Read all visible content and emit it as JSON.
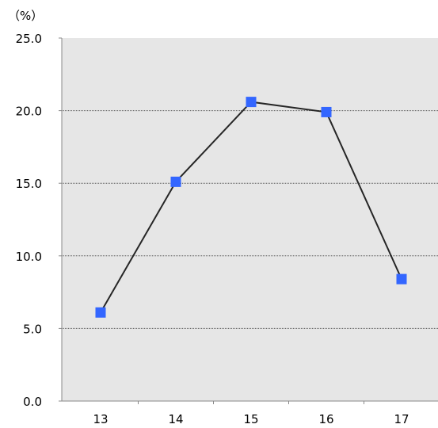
{
  "chart_data": {
    "type": "line",
    "title": "",
    "unit_label": "（%）",
    "xlabel": "",
    "ylabel": "",
    "categories": [
      "13",
      "14",
      "15",
      "16",
      "17"
    ],
    "series": [
      {
        "values": [
          6.1,
          15.1,
          20.6,
          19.9,
          8.4
        ]
      }
    ],
    "ylim": [
      0,
      25
    ],
    "yticks": [
      "0.0",
      "5.0",
      "10.0",
      "15.0",
      "20.0",
      "25.0"
    ],
    "grid": true,
    "legend": "none",
    "colors": {
      "plot_background": "#e6e6e6",
      "line": "#262626",
      "marker": "#3366ff",
      "gridline": "#555555"
    }
  }
}
